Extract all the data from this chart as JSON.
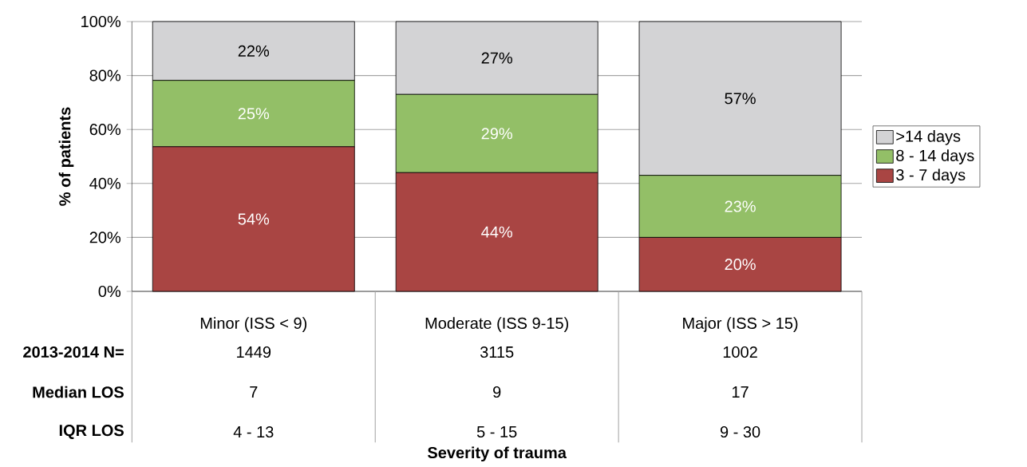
{
  "chart_data": {
    "type": "bar",
    "stacked": true,
    "ylabel": "% of patients",
    "categories": [
      "Minor (ISS < 9)",
      "Moderate (ISS 9-15)",
      "Major (ISS > 15)"
    ],
    "series": [
      {
        "name": "3 - 7 days",
        "color": "#a94543",
        "values": [
          53.6,
          44,
          20
        ],
        "value_labels": [
          "54%",
          "44%",
          "20%"
        ]
      },
      {
        "name": "8 - 14 days",
        "color": "#93bf67",
        "values": [
          24.6,
          29,
          23
        ],
        "value_labels": [
          "25%",
          "29%",
          "23%"
        ]
      },
      {
        "name": ">14 days",
        "color": "#d3d3d5",
        "values": [
          21.8,
          27,
          57
        ],
        "value_labels": [
          "22%",
          "27%",
          "57%"
        ]
      }
    ],
    "ylim": [
      0,
      100
    ],
    "yticks": [
      {
        "value": 0,
        "label": "0%"
      },
      {
        "value": 20,
        "label": "20%"
      },
      {
        "value": 40,
        "label": "40%"
      },
      {
        "value": 60,
        "label": "60%"
      },
      {
        "value": 80,
        "label": "80%"
      },
      {
        "value": 100,
        "label": "100%"
      }
    ],
    "grid": "y",
    "legend": "right",
    "annotations": [
      "2013-2014 N=",
      "1449",
      "3115",
      "1002",
      "Median LOS",
      "7",
      "9",
      "17",
      "IQR LOS",
      "4 - 13",
      "5 - 15",
      "9 - 30",
      "Severity of trauma"
    ]
  }
}
